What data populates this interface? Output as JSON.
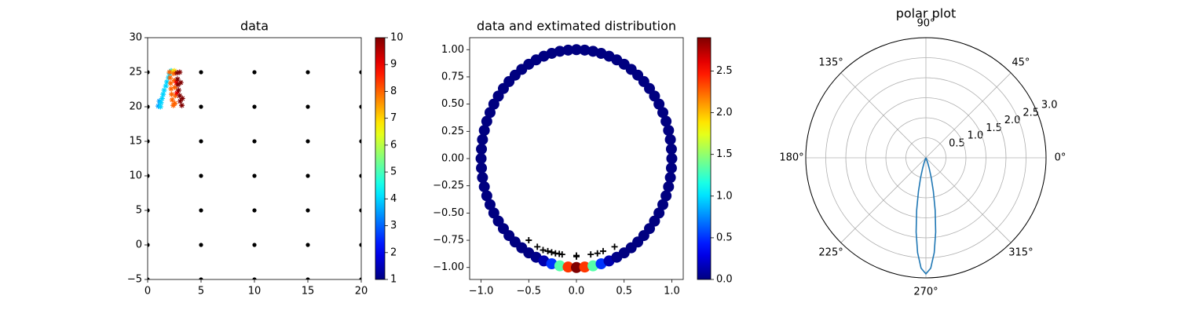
{
  "chart_data": [
    {
      "type": "scatter",
      "title": "data",
      "xlim": [
        0,
        20
      ],
      "ylim": [
        -5,
        30
      ],
      "xticks": [
        0,
        5,
        10,
        15,
        20
      ],
      "yticks": [
        {
          "value": -5,
          "label": "−5"
        },
        0,
        5,
        10,
        15,
        20,
        25,
        30
      ],
      "series": [
        {
          "marker": "dot",
          "color": "#000000",
          "x": [
            0,
            5,
            10,
            15,
            20,
            0,
            5,
            10,
            15,
            20,
            0,
            5,
            10,
            15,
            20,
            0,
            5,
            10,
            15,
            20,
            0,
            5,
            10,
            15,
            20,
            0,
            5,
            10,
            15,
            20,
            0,
            5,
            10,
            15,
            20
          ],
          "y": [
            -5,
            -5,
            -5,
            -5,
            -5,
            0,
            0,
            0,
            0,
            0,
            5,
            5,
            5,
            5,
            5,
            10,
            10,
            10,
            10,
            10,
            15,
            15,
            15,
            15,
            15,
            20,
            20,
            20,
            20,
            20,
            25,
            25,
            25,
            25,
            25
          ]
        },
        {
          "marker": "star",
          "x": [
            1.0,
            1.1,
            1.2,
            1.25,
            1.35,
            1.45,
            1.55,
            1.7,
            1.8,
            1.95,
            2.05,
            2.2,
            2.3,
            2.5,
            2.05,
            2.1,
            2.15,
            2.2,
            2.25,
            2.3,
            2.4,
            2.45,
            2.5,
            2.55,
            2.6,
            2.55,
            2.7,
            2.75,
            2.75,
            2.8,
            2.85,
            2.9,
            3.0,
            3.05,
            3.2,
            3.0,
            3.1,
            3.25
          ],
          "y": [
            20.1,
            20.8,
            20,
            20.6,
            21.2,
            21.8,
            22.4,
            23,
            23.6,
            24.2,
            24.8,
            25.2,
            25.1,
            25.2,
            25,
            24.2,
            23.4,
            22.6,
            21.8,
            21,
            20.2,
            24.8,
            23.8,
            22.8,
            21.6,
            20.5,
            23.5,
            22,
            24.9,
            24,
            23.2,
            22.4,
            21.6,
            20.8,
            20.2,
            25,
            23.5,
            21.2
          ],
          "c": [
            3.5,
            3.5,
            4,
            4,
            4,
            4,
            4,
            4,
            4,
            4,
            4,
            4,
            6,
            7,
            8,
            8,
            8,
            8,
            8,
            8,
            8,
            8,
            8,
            8,
            8,
            8,
            9,
            9,
            10,
            10,
            10,
            10,
            10,
            10,
            10,
            10,
            10,
            10
          ]
        }
      ],
      "colorbar": {
        "cmap": "jet",
        "clim": [
          1,
          10
        ],
        "ticks": [
          1,
          2,
          3,
          4,
          5,
          6,
          7,
          8,
          9,
          10
        ]
      }
    },
    {
      "type": "scatter",
      "title": "data and extimated distribution",
      "xlim": [
        -1.12,
        1.12
      ],
      "ylim": [
        -1.11,
        1.11
      ],
      "xticks": [
        {
          "value": -1,
          "label": "−1.0"
        },
        {
          "value": -0.5,
          "label": "−0.5"
        },
        {
          "value": 0,
          "label": "0.0"
        },
        0.5,
        {
          "value": 1,
          "label": "1.0"
        }
      ],
      "yticks": [
        {
          "value": -1,
          "label": "−1.00"
        },
        {
          "value": -0.75,
          "label": "−0.75"
        },
        {
          "value": -0.5,
          "label": "−0.50"
        },
        {
          "value": -0.25,
          "label": "−0.25"
        },
        {
          "value": 0,
          "label": "0.00"
        },
        {
          "value": 0.25,
          "label": "0.25"
        },
        {
          "value": 0.5,
          "label": "0.50"
        },
        {
          "value": 0.75,
          "label": "0.75"
        },
        {
          "value": 1,
          "label": "1.00"
        }
      ],
      "series": [
        {
          "marker": "ring",
          "x": [
            1,
            0.996,
            0.985,
            0.966,
            0.94,
            0.906,
            0.866,
            0.819,
            0.766,
            0.707,
            0.643,
            0.574,
            0.5,
            0.423,
            0.342,
            0.259,
            0.174,
            0.087,
            0,
            -0.087,
            -0.174,
            -0.259,
            -0.342,
            -0.423,
            -0.5,
            -0.574,
            -0.643,
            -0.707,
            -0.766,
            -0.819,
            -0.866,
            -0.906,
            -0.94,
            -0.966,
            -0.985,
            -0.996,
            -1,
            -0.996,
            -0.985,
            -0.966,
            -0.94,
            -0.906,
            -0.866,
            -0.819,
            -0.766,
            -0.707,
            -0.643,
            -0.574,
            -0.5,
            -0.423,
            -0.342,
            -0.259,
            -0.174,
            -0.087,
            0,
            0.087,
            0.174,
            0.259,
            0.342,
            0.423,
            0.5,
            0.574,
            0.643,
            0.707,
            0.766,
            0.819,
            0.866,
            0.906,
            0.94,
            0.966,
            0.985,
            0.996
          ],
          "y": [
            0,
            0.087,
            0.174,
            0.259,
            0.342,
            0.423,
            0.5,
            0.574,
            0.643,
            0.707,
            0.766,
            0.819,
            0.866,
            0.906,
            0.94,
            0.966,
            0.985,
            0.996,
            1,
            0.996,
            0.985,
            0.966,
            0.94,
            0.906,
            0.866,
            0.819,
            0.766,
            0.707,
            0.643,
            0.574,
            0.5,
            0.423,
            0.342,
            0.259,
            0.174,
            0.087,
            0,
            -0.087,
            -0.174,
            -0.259,
            -0.342,
            -0.423,
            -0.5,
            -0.574,
            -0.643,
            -0.707,
            -0.766,
            -0.819,
            -0.866,
            -0.906,
            -0.94,
            -0.966,
            -0.985,
            -0.996,
            -1,
            -0.996,
            -0.985,
            -0.966,
            -0.94,
            -0.906,
            -0.866,
            -0.819,
            -0.766,
            -0.707,
            -0.643,
            -0.574,
            -0.5,
            -0.423,
            -0.342,
            -0.259,
            -0.174,
            -0.087
          ],
          "c": [
            0,
            0,
            0,
            0,
            0,
            0,
            0,
            0,
            0,
            0,
            0,
            0,
            0,
            0,
            0,
            0,
            0,
            0,
            0,
            0,
            0,
            0,
            0,
            0,
            0,
            0,
            0,
            0,
            0,
            0,
            0,
            0,
            0,
            0,
            0,
            0,
            0,
            0,
            0,
            0,
            0,
            0,
            0,
            0,
            0,
            0,
            0,
            0,
            0,
            0.024,
            0.13,
            0.51,
            1.33,
            2.38,
            2.9,
            2.38,
            1.33,
            0.51,
            0.13,
            0.024,
            0,
            0,
            0,
            0,
            0,
            0,
            0,
            0,
            0,
            0,
            0,
            0
          ]
        },
        {
          "marker": "plus",
          "color": "#000000",
          "x": [
            -0.5,
            -0.41,
            -0.35,
            -0.3,
            -0.26,
            -0.22,
            -0.18,
            -0.15,
            0,
            0,
            0.15,
            0.22,
            0.28,
            0.4
          ],
          "y": [
            -0.75,
            -0.81,
            -0.84,
            -0.85,
            -0.86,
            -0.87,
            -0.875,
            -0.88,
            -0.9,
            -0.89,
            -0.88,
            -0.87,
            -0.85,
            -0.81
          ]
        }
      ],
      "colorbar": {
        "cmap": "jet",
        "clim": [
          0,
          2.9
        ],
        "ticks": [
          {
            "value": 0,
            "label": "0.0"
          },
          0.5,
          {
            "value": 1,
            "label": "1.0"
          },
          1.5,
          {
            "value": 2,
            "label": "2.0"
          },
          2.5
        ]
      }
    },
    {
      "type": "polar",
      "title": "polar plot",
      "grid": true,
      "rlim": [
        0,
        3
      ],
      "rticks": [
        0.5,
        {
          "value": 1,
          "label": "1.0"
        },
        1.5,
        {
          "value": 2,
          "label": "2.0"
        },
        2.5,
        {
          "value": 3,
          "label": "3.0"
        }
      ],
      "thetaticks": [
        {
          "value": 0,
          "label": "0°"
        },
        {
          "value": 45,
          "label": "45°"
        },
        {
          "value": 90,
          "label": "90°"
        },
        {
          "value": 135,
          "label": "135°"
        },
        {
          "value": 180,
          "label": "180°"
        },
        {
          "value": 225,
          "label": "225°"
        },
        {
          "value": 270,
          "label": "270°"
        },
        {
          "value": 315,
          "label": "315°"
        }
      ],
      "series": [
        {
          "color": "#1f77b4",
          "theta": [
            0,
            90,
            180,
            240,
            245,
            250,
            252.5,
            255,
            257.5,
            260,
            262.5,
            265,
            267.5,
            270,
            272.5,
            275,
            277.5,
            280,
            282.5,
            285,
            287.5,
            290,
            295,
            300,
            360
          ],
          "r": [
            0,
            0,
            0,
            0.004,
            0.024,
            0.13,
            0.27,
            0.51,
            0.86,
            1.33,
            1.87,
            2.38,
            2.76,
            2.9,
            2.76,
            2.38,
            1.87,
            1.33,
            0.86,
            0.51,
            0.27,
            0.13,
            0.024,
            0.004,
            0
          ]
        }
      ]
    }
  ]
}
